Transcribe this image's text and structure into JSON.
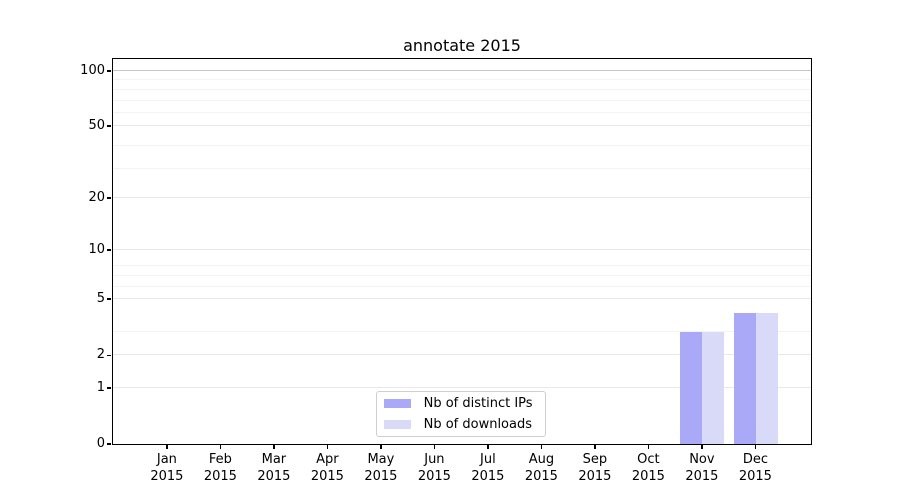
{
  "chart_data": {
    "type": "bar",
    "title": "annotate 2015",
    "categories": [
      "Jan 2015",
      "Feb 2015",
      "Mar 2015",
      "Apr 2015",
      "May 2015",
      "Jun 2015",
      "Jul 2015",
      "Aug 2015",
      "Sep 2015",
      "Oct 2015",
      "Nov 2015",
      "Dec 2015"
    ],
    "x_tick_months": [
      "Jan",
      "Feb",
      "Mar",
      "Apr",
      "May",
      "Jun",
      "Jul",
      "Aug",
      "Sep",
      "Oct",
      "Nov",
      "Dec"
    ],
    "x_tick_year": "2015",
    "series": [
      {
        "name": "Nb of distinct IPs",
        "color": "#a9a9f7",
        "values": [
          0,
          0,
          0,
          0,
          0,
          0,
          0,
          0,
          0,
          0,
          3,
          4
        ]
      },
      {
        "name": "Nb of downloads",
        "color": "#d9d9f8",
        "values": [
          0,
          0,
          0,
          0,
          0,
          0,
          0,
          0,
          0,
          0,
          3,
          4
        ]
      }
    ],
    "yscale": "log1p",
    "ylim": [
      0,
      116
    ],
    "yticks": [
      0,
      1,
      2,
      5,
      10,
      20,
      50,
      100
    ],
    "minor_yticks": [
      2,
      3,
      5,
      6,
      7,
      8,
      29,
      39,
      59,
      69,
      79,
      89
    ],
    "grid": "horizontal",
    "legend_position": "lower center",
    "colors": {
      "grid_major": "#e8e8e8",
      "grid_minor": "#f3f3f3",
      "grid_top": "#c8c8c8",
      "spine": "#000000"
    }
  }
}
